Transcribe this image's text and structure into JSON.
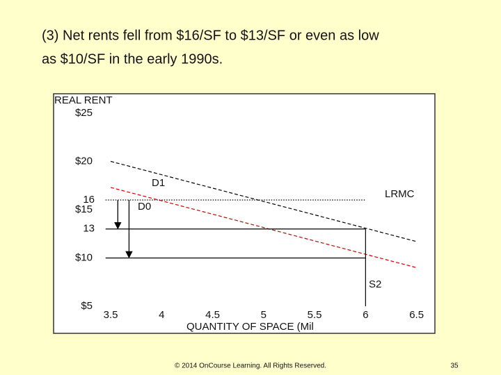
{
  "slide": {
    "title_lines": [
      "(3) Net rents fell from $16/SF to $13/SF or even as low",
      "as $10/SF in the early 1990s."
    ],
    "footer": "© 2014 OnCourse Learning. All Rights Reserved.",
    "page_number": "35"
  },
  "chart_data": {
    "type": "line",
    "ylabel": "REAL RENT",
    "xlabel": "QUANTITY OF SPACE (Mil",
    "xlim": [
      2.94,
      6.68
    ],
    "ylim": [
      2.2,
      27
    ],
    "xticks": [
      3.5,
      4,
      4.5,
      5,
      5.5,
      6,
      6.5
    ],
    "yticks": [
      {
        "value": 25,
        "label": "$25"
      },
      {
        "value": 20,
        "label": "$20"
      },
      16,
      {
        "value": 15,
        "label": "$15"
      },
      13,
      {
        "value": 10,
        "label": "$10"
      },
      {
        "value": 5,
        "label": "$5"
      }
    ],
    "grid": false,
    "series": [
      {
        "name": "D1",
        "color": "#000000",
        "dash": "dashed",
        "x": [
          3.5,
          6.5
        ],
        "values": [
          20,
          11.7
        ]
      },
      {
        "name": "D0",
        "color": "#cc0000",
        "dash": "dashed",
        "x": [
          3.5,
          6.5
        ],
        "values": [
          17.3,
          9
        ]
      },
      {
        "name": "LRMC",
        "color": "#000000",
        "dash": "dotted",
        "x": [
          3.45,
          6
        ],
        "values": [
          16,
          16
        ]
      },
      {
        "name": "S2",
        "color": "#000000",
        "dash": "solid",
        "x": [
          6,
          6
        ],
        "values": [
          13,
          5
        ]
      },
      {
        "color": "#000000",
        "dash": "solid",
        "x": [
          3.45,
          6
        ],
        "values": [
          13,
          13
        ]
      },
      {
        "color": "#000000",
        "dash": "solid",
        "x": [
          3.45,
          6
        ],
        "values": [
          10,
          10
        ]
      }
    ],
    "arrows": [
      {
        "x": 3.57,
        "from": 16,
        "to": 13
      },
      {
        "x": 3.68,
        "from": 16,
        "to": 10
      }
    ]
  }
}
